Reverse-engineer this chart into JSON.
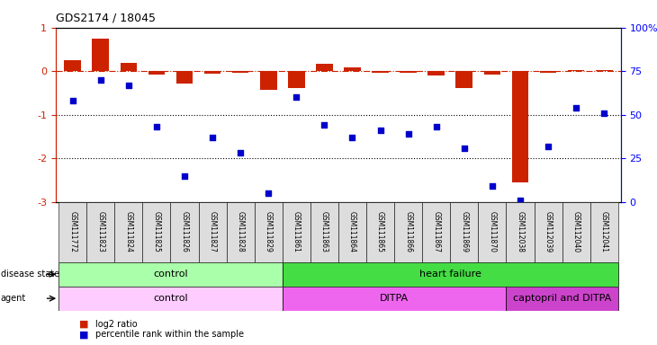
{
  "title": "GDS2174 / 18045",
  "samples": [
    "GSM111772",
    "GSM111823",
    "GSM111824",
    "GSM111825",
    "GSM111826",
    "GSM111827",
    "GSM111828",
    "GSM111829",
    "GSM111861",
    "GSM111863",
    "GSM111864",
    "GSM111865",
    "GSM111866",
    "GSM111867",
    "GSM111869",
    "GSM111870",
    "GSM112038",
    "GSM112039",
    "GSM112040",
    "GSM112041"
  ],
  "log2_ratio": [
    0.25,
    0.75,
    0.18,
    -0.08,
    -0.28,
    -0.06,
    -0.04,
    -0.42,
    -0.38,
    0.16,
    0.08,
    -0.04,
    -0.04,
    -0.1,
    -0.38,
    -0.08,
    -2.55,
    -0.04,
    0.02,
    0.02
  ],
  "percentile": [
    58,
    70,
    67,
    43,
    15,
    37,
    28,
    5,
    60,
    44,
    37,
    41,
    39,
    43,
    31,
    9,
    1,
    32,
    54,
    51
  ],
  "ylim_left": [
    -3,
    1
  ],
  "ylim_right": [
    0,
    100
  ],
  "right_ticks": [
    0,
    25,
    50,
    75,
    100
  ],
  "right_tick_labels": [
    "0",
    "25",
    "50",
    "75",
    "100%"
  ],
  "left_ticks": [
    -3,
    -2,
    -1,
    0,
    1
  ],
  "dotted_lines": [
    -1,
    -2
  ],
  "bar_color": "#cc2200",
  "dot_color": "#0000cc",
  "hline_color": "#cc2200",
  "disease_state_groups": [
    {
      "label": "control",
      "start": 0,
      "end": 7,
      "color": "#aaffaa"
    },
    {
      "label": "heart failure",
      "start": 8,
      "end": 19,
      "color": "#44dd44"
    }
  ],
  "agent_groups": [
    {
      "label": "control",
      "start": 0,
      "end": 7,
      "color": "#ffccff"
    },
    {
      "label": "DITPA",
      "start": 8,
      "end": 15,
      "color": "#ee66ee"
    },
    {
      "label": "captopril and DITPA",
      "start": 16,
      "end": 19,
      "color": "#cc44cc"
    }
  ],
  "legend_bar_color": "#cc2200",
  "legend_dot_color": "#0000cc",
  "legend_label_bar": "log2 ratio",
  "legend_label_dot": "percentile rank within the sample",
  "left_tick_color": "#cc2200",
  "bg_plot": "#ffffff",
  "bg_fig": "#ffffff"
}
